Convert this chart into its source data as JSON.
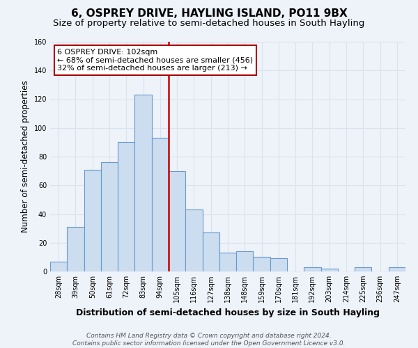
{
  "title": "6, OSPREY DRIVE, HAYLING ISLAND, PO11 9BX",
  "subtitle": "Size of property relative to semi-detached houses in South Hayling",
  "xlabel": "Distribution of semi-detached houses by size in South Hayling",
  "ylabel": "Number of semi-detached properties",
  "bin_labels": [
    "28sqm",
    "39sqm",
    "50sqm",
    "61sqm",
    "72sqm",
    "83sqm",
    "94sqm",
    "105sqm",
    "116sqm",
    "127sqm",
    "138sqm",
    "148sqm",
    "159sqm",
    "170sqm",
    "181sqm",
    "192sqm",
    "203sqm",
    "214sqm",
    "225sqm",
    "236sqm",
    "247sqm"
  ],
  "bar_heights": [
    7,
    31,
    71,
    76,
    90,
    123,
    93,
    70,
    43,
    27,
    13,
    14,
    10,
    9,
    0,
    3,
    2,
    0,
    3,
    0,
    3
  ],
  "bar_color": "#ccddf0",
  "bar_edge_color": "#6699cc",
  "vline_color": "#cc0000",
  "vline_x": 6.5,
  "annotation_title": "6 OSPREY DRIVE: 102sqm",
  "annotation_line1": "← 68% of semi-detached houses are smaller (456)",
  "annotation_line2": "32% of semi-detached houses are larger (213) →",
  "annotation_box_color": "#ffffff",
  "annotation_box_edge": "#aa0000",
  "ylim": [
    0,
    160
  ],
  "yticks": [
    0,
    20,
    40,
    60,
    80,
    100,
    120,
    140,
    160
  ],
  "footer_line1": "Contains HM Land Registry data © Crown copyright and database right 2024.",
  "footer_line2": "Contains public sector information licensed under the Open Government Licence v3.0.",
  "background_color": "#eef2f9",
  "grid_color": "#d8e4f0",
  "title_fontsize": 11,
  "subtitle_fontsize": 9.5,
  "xlabel_fontsize": 9,
  "ylabel_fontsize": 8.5,
  "tick_fontsize": 7,
  "footer_fontsize": 6.5,
  "ann_fontsize": 8
}
